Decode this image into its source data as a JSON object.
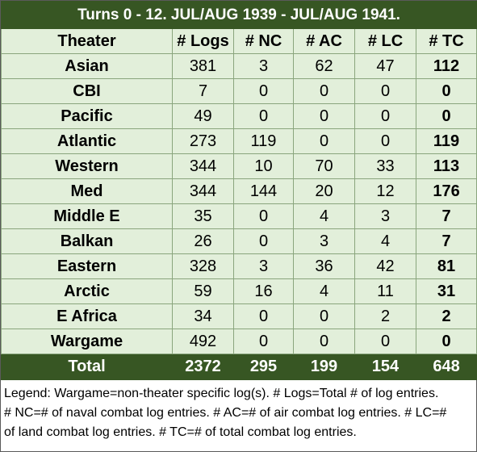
{
  "title": "Turns 0 - 12.  JUL/AUG 1939 - JUL/AUG 1941.",
  "headers": [
    "Theater",
    "# Logs",
    "# NC",
    "# AC",
    "# LC",
    "# TC"
  ],
  "rows": [
    [
      "Asian",
      "381",
      "3",
      "62",
      "47",
      "112"
    ],
    [
      "CBI",
      "7",
      "0",
      "0",
      "0",
      "0"
    ],
    [
      "Pacific",
      "49",
      "0",
      "0",
      "0",
      "0"
    ],
    [
      "Atlantic",
      "273",
      "119",
      "0",
      "0",
      "119"
    ],
    [
      "Western",
      "344",
      "10",
      "70",
      "33",
      "113"
    ],
    [
      "Med",
      "344",
      "144",
      "20",
      "12",
      "176"
    ],
    [
      "Middle E",
      "35",
      "0",
      "4",
      "3",
      "7"
    ],
    [
      "Balkan",
      "26",
      "0",
      "3",
      "4",
      "7"
    ],
    [
      "Eastern",
      "328",
      "3",
      "36",
      "42",
      "81"
    ],
    [
      "Arctic",
      "59",
      "16",
      "4",
      "11",
      "31"
    ],
    [
      "E Africa",
      "34",
      "0",
      "0",
      "2",
      "2"
    ],
    [
      "Wargame",
      "492",
      "0",
      "0",
      "0",
      "0"
    ]
  ],
  "total": [
    "Total",
    "2372",
    "295",
    "199",
    "154",
    "648"
  ],
  "legend": [
    "Legend:  Wargame=non-theater specific log(s).  # Logs=Total # of log entries.",
    "# NC=# of naval combat log entries.  # AC=# of air combat log entries.  # LC=#",
    "of land combat log entries.  # TC=# of total combat log entries."
  ],
  "colors": {
    "dark_green": "#375623",
    "light_green": "#e2efda",
    "grid": "#8aa57d"
  }
}
